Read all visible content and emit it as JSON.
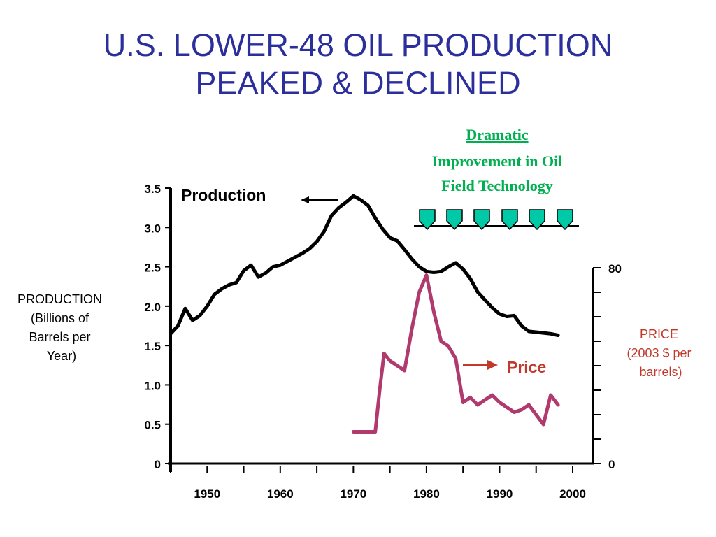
{
  "title": {
    "line1": "U.S. LOWER-48 OIL PRODUCTION",
    "line2": "PEAKED & DECLINED"
  },
  "chart_data": {
    "type": "line",
    "x_axis": {
      "range": [
        1945,
        2000
      ],
      "ticks": [
        1950,
        1960,
        1970,
        1980,
        1990,
        2000
      ],
      "tick_labels": [
        "1950",
        "1960",
        "1970",
        "1980",
        "1990",
        "2000"
      ]
    },
    "y_left": {
      "label_lines": [
        "PRODUCTION",
        "(Billions of",
        "Barrels per",
        "Year)"
      ],
      "range": [
        0,
        3.5
      ],
      "ticks": [
        0,
        0.5,
        1.0,
        1.5,
        2.0,
        2.5,
        3.0,
        3.5
      ],
      "tick_labels": [
        "0",
        "0.5",
        "1.0",
        "1.5",
        "2.0",
        "2.5",
        "3.0",
        "3.5"
      ]
    },
    "y_right": {
      "label_lines": [
        "PRICE",
        "(2003 $ per",
        "barrels)"
      ],
      "range": [
        0,
        80
      ],
      "ticks": [
        0,
        10,
        20,
        30,
        40,
        50,
        60,
        70,
        80
      ],
      "tick_labels": [
        "0",
        "80"
      ]
    },
    "series": [
      {
        "name": "Production",
        "axis": "left",
        "color": "#000000",
        "x": [
          1945,
          1946,
          1947,
          1948,
          1949,
          1950,
          1951,
          1952,
          1953,
          1954,
          1955,
          1956,
          1957,
          1958,
          1959,
          1960,
          1961,
          1962,
          1963,
          1964,
          1965,
          1966,
          1967,
          1968,
          1969,
          1970,
          1971,
          1972,
          1973,
          1974,
          1975,
          1976,
          1977,
          1978,
          1979,
          1980,
          1981,
          1982,
          1983,
          1984,
          1985,
          1986,
          1987,
          1988,
          1989,
          1990,
          1991,
          1992,
          1993,
          1994,
          1995,
          1996,
          1997,
          1998
        ],
        "values": [
          1.65,
          1.75,
          1.97,
          1.82,
          1.88,
          2.0,
          2.15,
          2.22,
          2.27,
          2.3,
          2.45,
          2.52,
          2.37,
          2.42,
          2.5,
          2.52,
          2.57,
          2.62,
          2.67,
          2.73,
          2.82,
          2.95,
          3.15,
          3.25,
          3.32,
          3.4,
          3.35,
          3.28,
          3.12,
          2.98,
          2.87,
          2.83,
          2.72,
          2.6,
          2.5,
          2.44,
          2.43,
          2.44,
          2.5,
          2.55,
          2.47,
          2.35,
          2.18,
          2.08,
          1.98,
          1.9,
          1.87,
          1.88,
          1.75,
          1.68,
          1.67,
          1.66,
          1.65,
          1.63
        ]
      },
      {
        "name": "Price",
        "axis": "right",
        "color": "#b03a6e",
        "x": [
          1970,
          1973,
          1973.6,
          1974.2,
          1975,
          1976,
          1977,
          1978,
          1979,
          1980,
          1981,
          1982,
          1983,
          1984,
          1985,
          1986,
          1987,
          1988,
          1989,
          1990,
          1991,
          1992,
          1993,
          1994,
          1995,
          1996,
          1997,
          1998
        ],
        "values": [
          13,
          13,
          30,
          45,
          42,
          40,
          38,
          55,
          70,
          77,
          62,
          50,
          48,
          43,
          25,
          27,
          24,
          26,
          28,
          25,
          23,
          21,
          22,
          24,
          20,
          16,
          28,
          24
        ]
      }
    ],
    "annotations": {
      "production_label": "Production",
      "price_label": "Price",
      "technology_lines": [
        "Dramatic",
        "Improvement in Oil",
        "Field Technology"
      ]
    },
    "colors": {
      "title": "#2b2f9c",
      "price_text": "#c0392b",
      "arrow_red": "#c0392b",
      "technology_text": "#00b050",
      "technology_arrows": "#00c9a7"
    }
  }
}
